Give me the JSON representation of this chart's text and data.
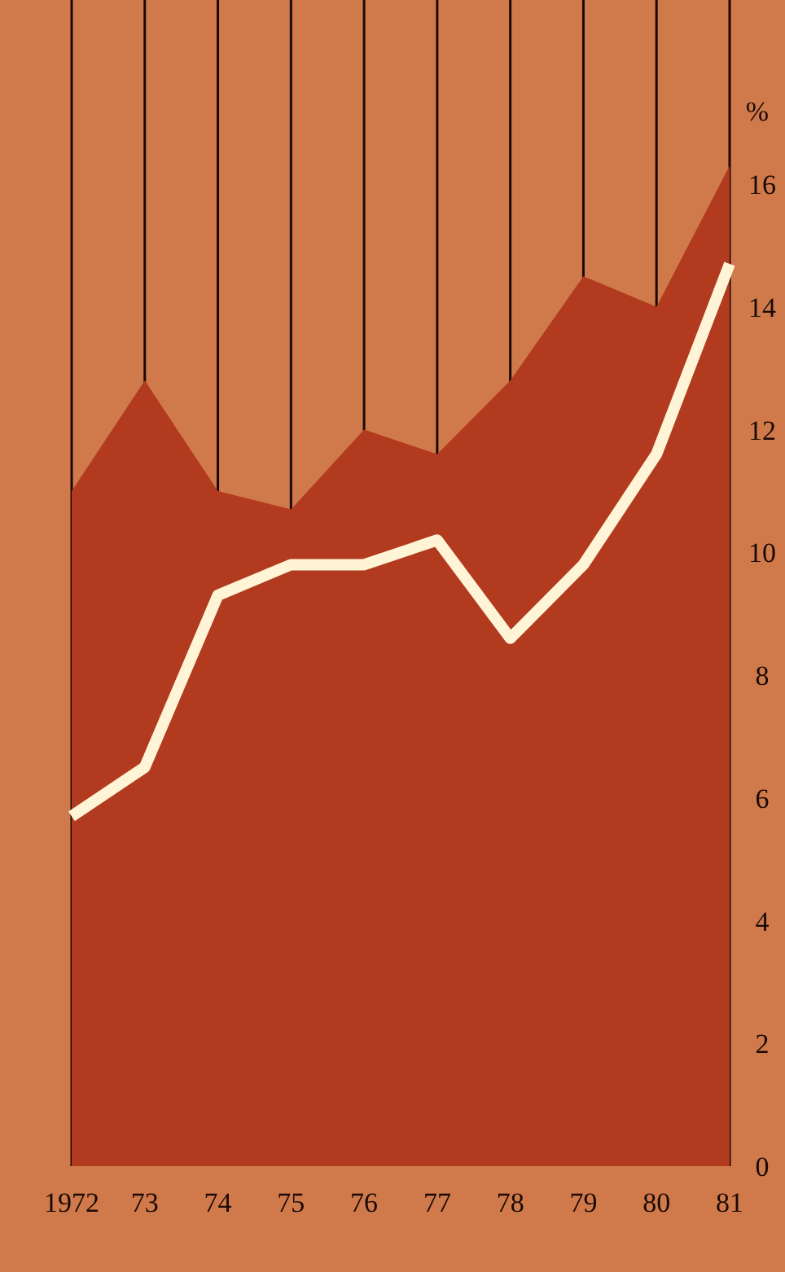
{
  "chart_data": {
    "type": "area",
    "ylabel": "%",
    "categories": [
      "1972",
      "73",
      "74",
      "75",
      "76",
      "77",
      "78",
      "79",
      "80",
      "81"
    ],
    "series": [
      {
        "color": "#b23b1f",
        "values": [
          11.0,
          12.8,
          11.0,
          10.7,
          12.0,
          11.6,
          12.8,
          14.5,
          14.0,
          16.3
        ]
      },
      {
        "type": "line",
        "color": "#fff4d6",
        "values": [
          5.7,
          6.5,
          9.3,
          9.8,
          9.8,
          10.2,
          8.6,
          9.8,
          11.6,
          14.7
        ]
      }
    ],
    "ylim": [
      0,
      19
    ],
    "yticks": [
      0,
      2,
      4,
      6,
      8,
      10,
      12,
      14,
      16
    ],
    "grid": "x",
    "marker": "none",
    "line_style": "solid"
  }
}
